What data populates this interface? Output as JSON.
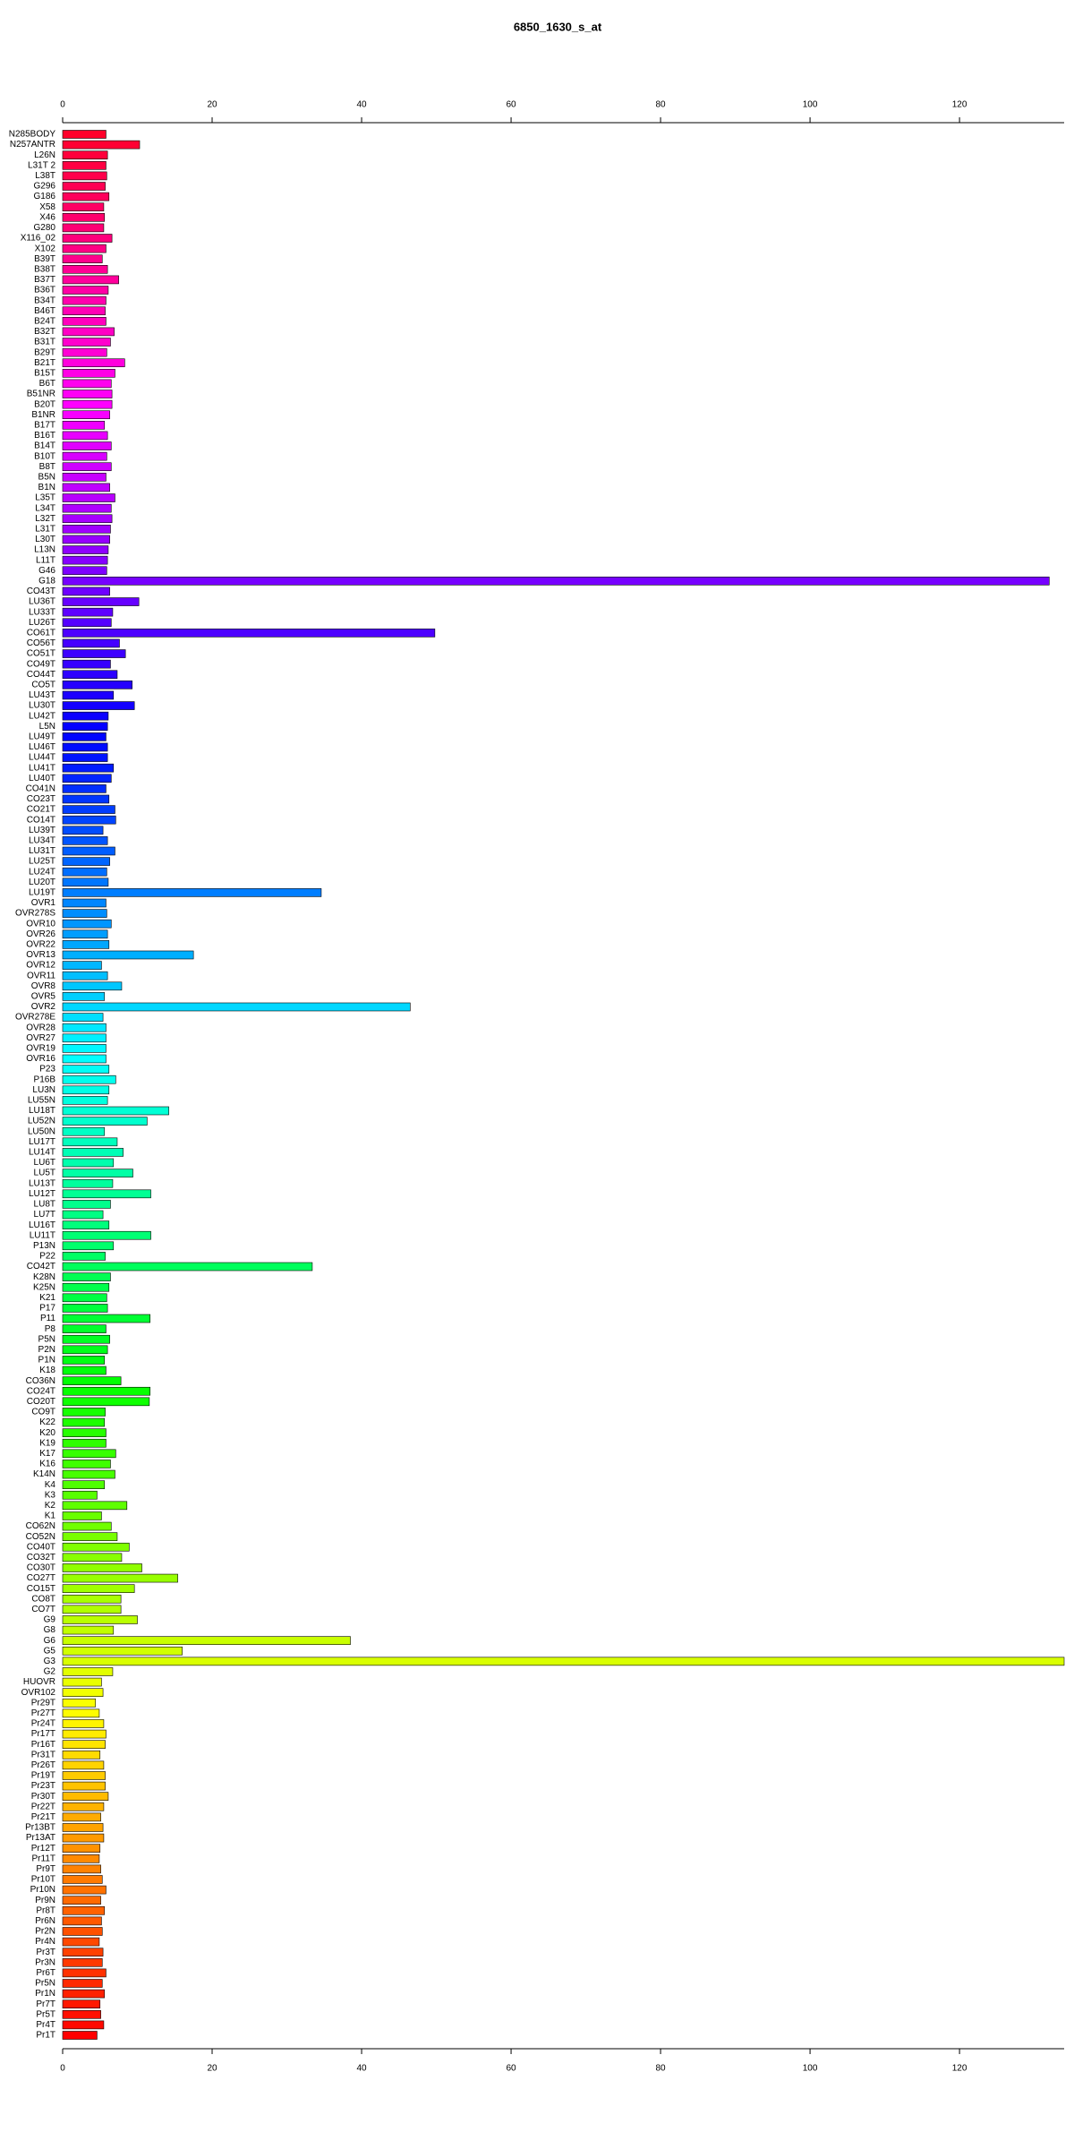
{
  "chart_data": {
    "type": "hbar",
    "title": "6850_1630_s_at",
    "categories": [
      "N285BODY",
      "N257ANTR",
      "L26N",
      "L31T 2",
      "L38T",
      "G296",
      "G186",
      "X58",
      "X46",
      "G280",
      "X116_02",
      "X102",
      "B39T",
      "B38T",
      "B37T",
      "B36T",
      "B34T",
      "B46T",
      "B24T",
      "B32T",
      "B31T",
      "B29T",
      "B21T",
      "B15T",
      "B6T",
      "B51NR",
      "B20T",
      "B1NR",
      "B17T",
      "B16T",
      "B14T",
      "B10T",
      "B8T",
      "B5N",
      "B1N",
      "L35T",
      "L34T",
      "L32T",
      "L31T",
      "L30T",
      "L13N",
      "L11T",
      "G46",
      "G18",
      "CO43T",
      "LU36T",
      "LU33T",
      "LU26T",
      "CO61T",
      "CO56T",
      "CO51T",
      "CO49T",
      "CO44T",
      "CO5T",
      "LU43T",
      "LU30T",
      "LU42T",
      "L5N",
      "LU49T",
      "LU46T",
      "LU44T",
      "LU41T",
      "LU40T",
      "CO41N",
      "CO23T",
      "CO21T",
      "CO14T",
      "LU39T",
      "LU34T",
      "LU31T",
      "LU25T",
      "LU24T",
      "LU20T",
      "LU19T",
      "OVR1",
      "OVR278S",
      "OVR10",
      "OVR26",
      "OVR22",
      "OVR13",
      "OVR12",
      "OVR11",
      "OVR8",
      "OVR5",
      "OVR2",
      "OVR278E",
      "OVR28",
      "OVR27",
      "OVR19",
      "OVR16",
      "P23",
      "P16B",
      "LU3N",
      "LU55N",
      "LU18T",
      "LU52N",
      "LU50N",
      "LU17T",
      "LU14T",
      "LU6T",
      "LU5T",
      "LU13T",
      "LU12T",
      "LU8T",
      "LU7T",
      "LU16T",
      "LU11T",
      "P13N",
      "P22",
      "CO42T",
      "K28N",
      "K25N",
      "K21",
      "P17",
      "P11",
      "P8",
      "P5N",
      "P2N",
      "P1N",
      "K18",
      "CO36N",
      "CO24T",
      "CO20T",
      "CO9T",
      "K22",
      "K20",
      "K19",
      "K17",
      "K16",
      "K14N",
      "K4",
      "K3",
      "K2",
      "K1",
      "CO62N",
      "CO52N",
      "CO40T",
      "CO32T",
      "CO30T",
      "CO27T",
      "CO15T",
      "CO8T",
      "CO7T",
      "G9",
      "G8",
      "G6",
      "G5",
      "G3",
      "G2",
      "HUOVR",
      "OVR102",
      "Pr29T",
      "Pr27T",
      "Pr24T",
      "Pr17T",
      "Pr16T",
      "Pr31T",
      "Pr26T",
      "Pr19T",
      "Pr23T",
      "Pr30T",
      "Pr22T",
      "Pr21T",
      "Pr13BT",
      "Pr13AT",
      "Pr12T",
      "Pr11T",
      "Pr9T",
      "Pr10T",
      "Pr10N",
      "Pr9N",
      "Pr8T",
      "Pr6N",
      "Pr2N",
      "Pr4N",
      "Pr3T",
      "Pr3N",
      "Pr6T",
      "Pr5N",
      "Pr1N",
      "Pr7T",
      "Pr5T",
      "Pr4T",
      "Pr1T"
    ],
    "values": [
      5.8,
      10.3,
      6,
      5.8,
      5.9,
      5.7,
      6.2,
      5.5,
      5.6,
      5.5,
      6.6,
      5.8,
      5.3,
      6,
      7.5,
      6.1,
      5.8,
      5.7,
      5.8,
      6.9,
      6.4,
      5.9,
      8.3,
      7,
      6.5,
      6.6,
      6.6,
      6.3,
      5.6,
      6,
      6.5,
      5.9,
      6.5,
      5.8,
      6.3,
      7,
      6.5,
      6.6,
      6.4,
      6.3,
      6.1,
      6,
      5.9,
      132,
      6.3,
      10.2,
      6.7,
      6.5,
      49.8,
      7.6,
      8.4,
      6.4,
      7.3,
      9.3,
      6.8,
      9.6,
      6.1,
      6,
      5.8,
      6,
      6,
      6.8,
      6.5,
      5.8,
      6.2,
      7,
      7.1,
      5.4,
      6,
      7,
      6.3,
      5.9,
      6.1,
      34.6,
      5.8,
      5.9,
      6.5,
      6,
      6.2,
      17.5,
      5.2,
      6,
      7.9,
      5.6,
      46.5,
      5.4,
      5.8,
      5.8,
      5.8,
      5.8,
      6.2,
      7.1,
      6.2,
      6,
      14.2,
      11.3,
      5.6,
      7.3,
      8.1,
      6.8,
      9.4,
      6.7,
      11.8,
      6.4,
      5.4,
      6.2,
      11.8,
      6.8,
      5.7,
      33.4,
      6.4,
      6.2,
      5.9,
      6,
      11.7,
      5.8,
      6.3,
      6,
      5.6,
      5.8,
      7.8,
      11.7,
      11.6,
      5.7,
      5.6,
      5.8,
      5.8,
      7.1,
      6.4,
      7,
      5.6,
      4.6,
      8.6,
      5.2,
      6.5,
      7.3,
      8.9,
      7.9,
      10.6,
      15.4,
      9.6,
      7.8,
      7.8,
      10,
      6.8,
      38.5,
      16,
      134,
      6.7,
      5.2,
      5.4,
      4.4,
      4.9,
      5.5,
      5.8,
      5.7,
      5,
      5.5,
      5.7,
      5.7,
      6.1,
      5.5,
      5.1,
      5.4,
      5.5,
      5,
      4.9,
      5.1,
      5.3,
      5.8,
      5.1,
      5.6,
      5.2,
      5.3,
      4.9,
      5.4,
      5.3,
      5.8,
      5.3,
      5.6,
      5,
      5.1,
      5.5,
      4.6
    ],
    "palette": "rainbow",
    "xlim": [
      0,
      134
    ],
    "xticks": [
      0,
      20,
      40,
      60,
      80,
      100,
      120
    ]
  }
}
